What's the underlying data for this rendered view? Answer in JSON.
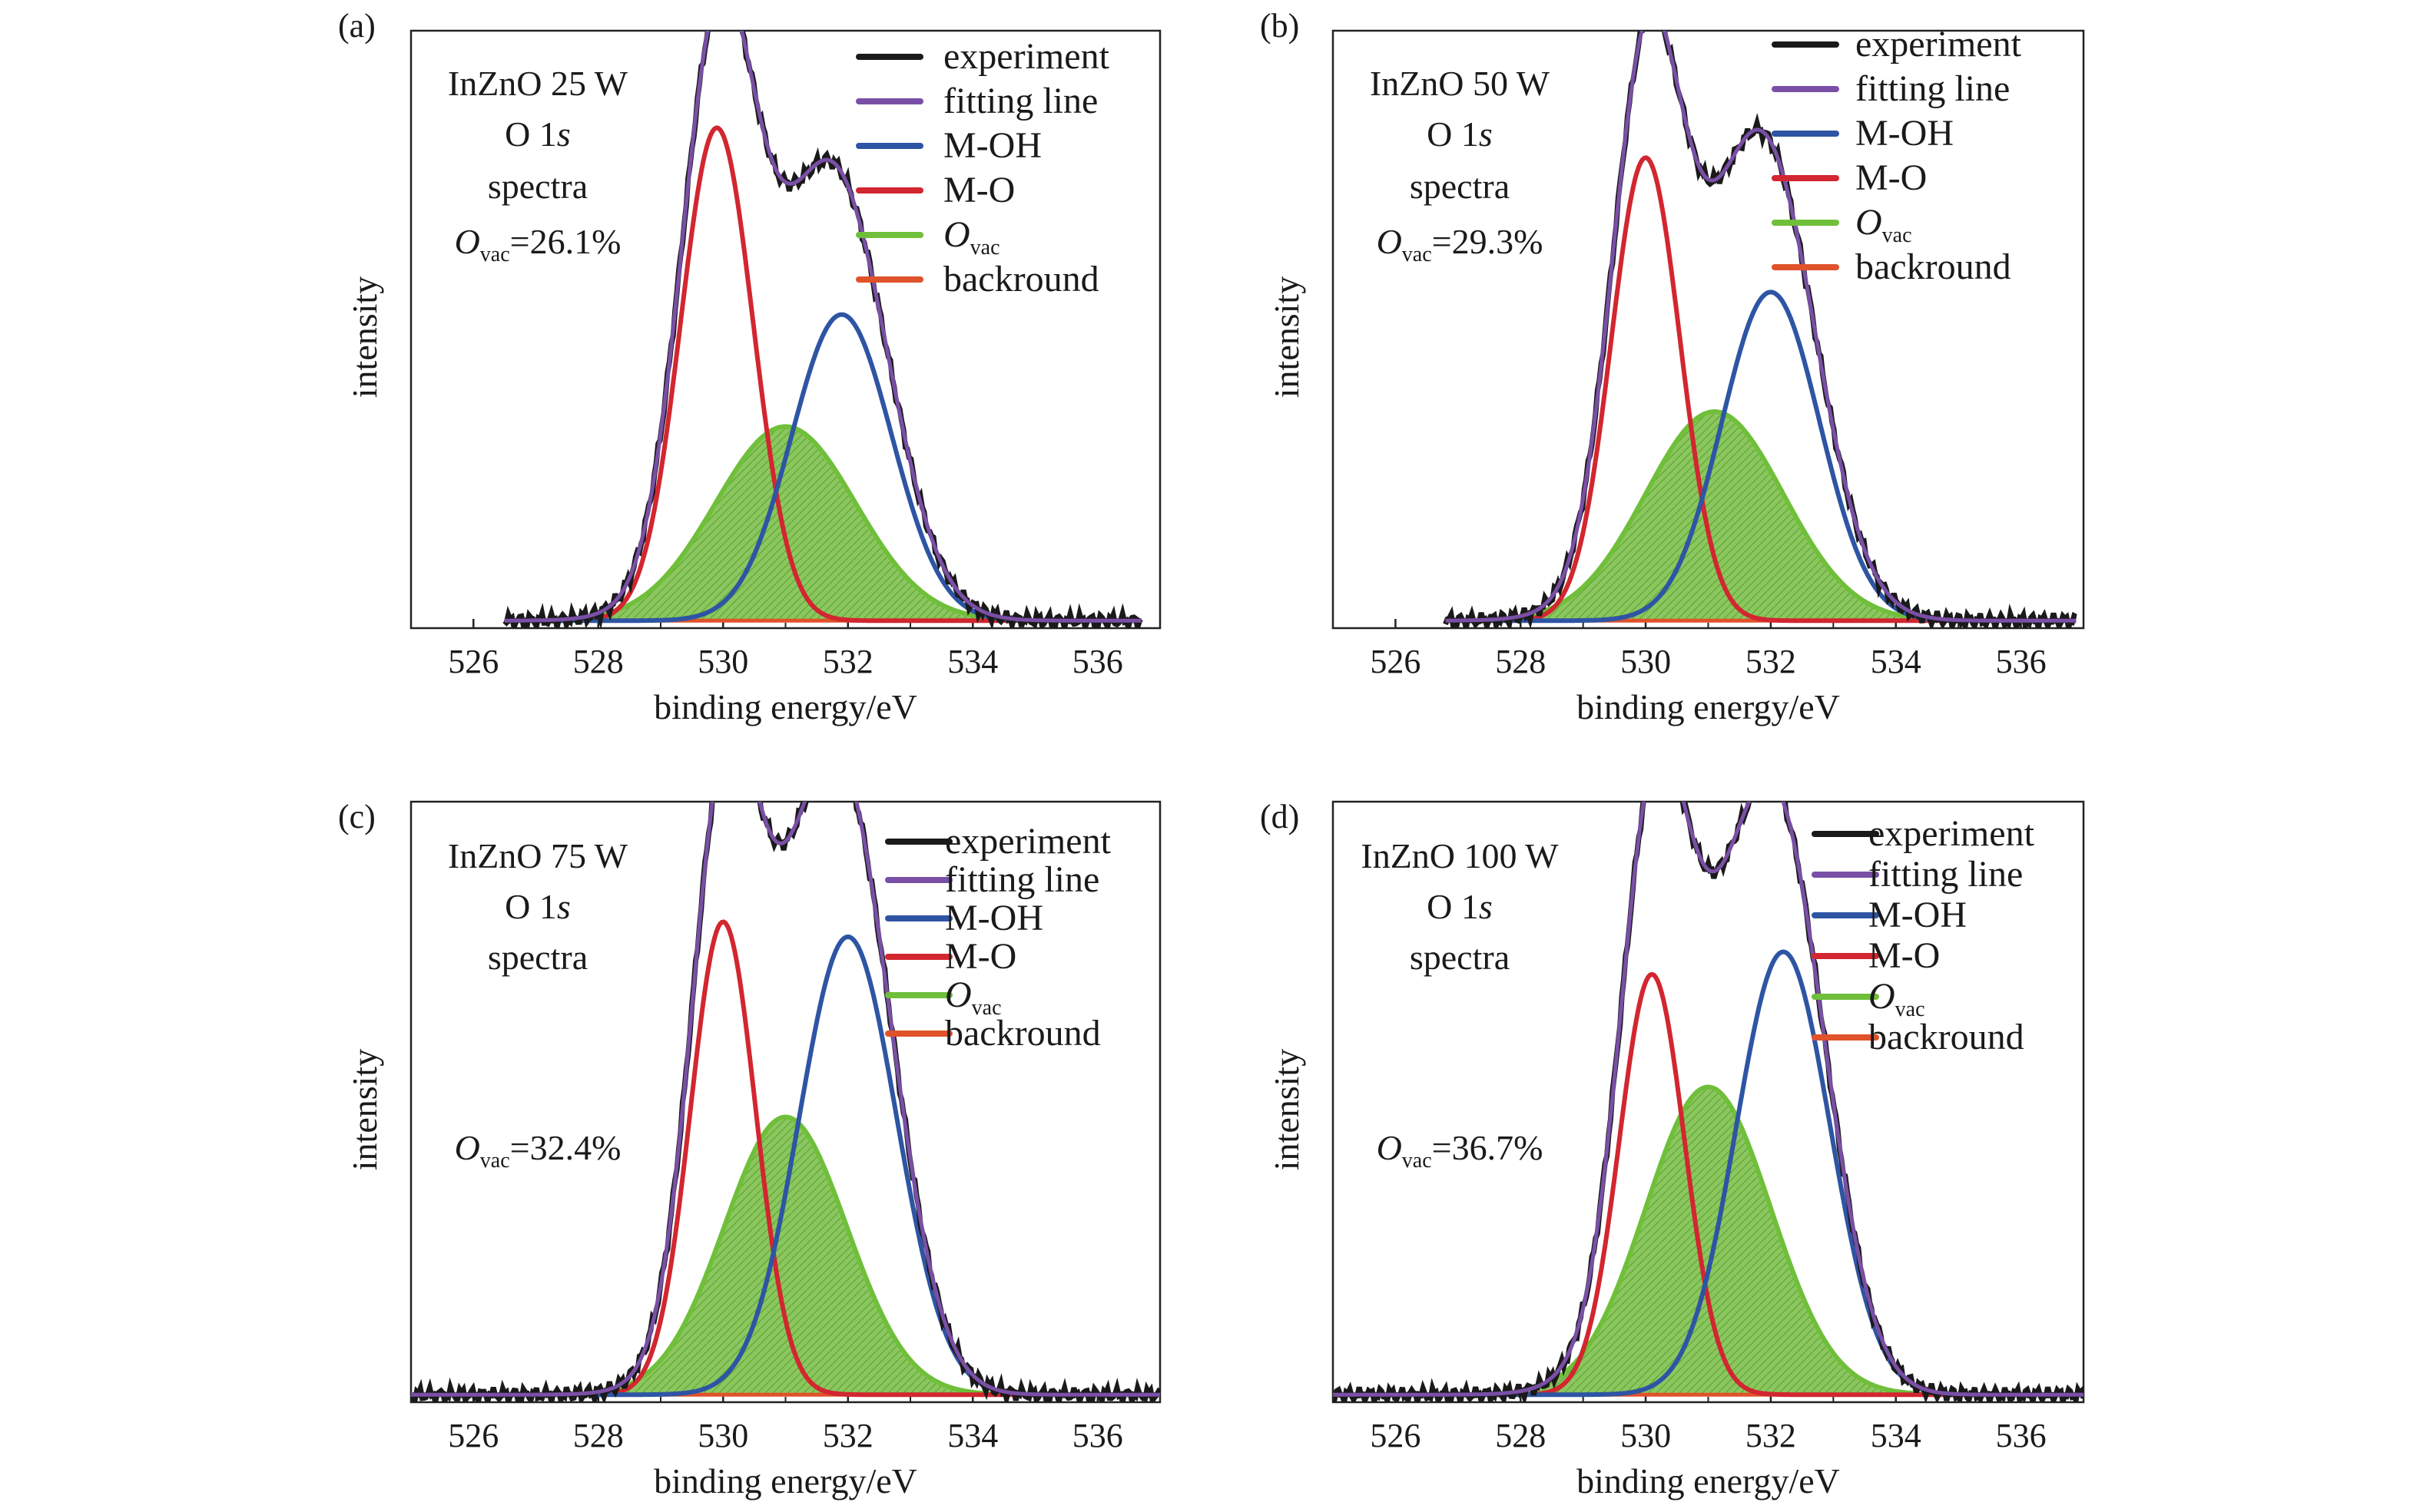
{
  "legend_labels": {
    "experiment": "experiment",
    "fitting": "fitting line",
    "moh": "M-OH",
    "mo": "M-O",
    "ovac_main": "O",
    "ovac_sub": "vac",
    "background": "backround"
  },
  "colors": {
    "experiment": "#1a1a1a",
    "fitting": "#7a4fa6",
    "moh": "#2e55a4",
    "mo": "#d22630",
    "ovac": "#6fbf3a",
    "ovac_fill": "#8cc660",
    "background": "#e0522a"
  },
  "chart_data": [
    {
      "type": "line",
      "panel_label": "(a)",
      "annotation": {
        "line1": "InZnO 25 W",
        "line2_main": "O 1",
        "line2_italic": "s",
        "line3": "spectra",
        "ovac_main": "O",
        "ovac_sub": "vac",
        "ovac_value": "=26.1%"
      },
      "xlabel": "binding energy/eV",
      "ylabel": "intensity",
      "xticks": [
        "526",
        "528",
        "530",
        "532",
        "534",
        "536"
      ],
      "xlim": [
        525,
        537
      ],
      "x_start": 526.5,
      "x_end": 536.7,
      "peaks": {
        "mo": {
          "center": 529.9,
          "height": 0.66,
          "sigma": 0.58
        },
        "moh": {
          "center": 531.9,
          "height": 0.41,
          "sigma": 0.8
        },
        "ovac": {
          "center": 531.0,
          "height": 0.26,
          "sigma": 1.12
        }
      },
      "baseline": 0.01
    },
    {
      "type": "line",
      "panel_label": "(b)",
      "annotation": {
        "line1": "InZnO 50 W",
        "line2_main": "O 1",
        "line2_italic": "s",
        "line3": "spectra",
        "ovac_main": "O",
        "ovac_sub": "vac",
        "ovac_value": "=29.3%"
      },
      "xlabel": "binding energy/eV",
      "ylabel": "intensity",
      "xticks": [
        "526",
        "528",
        "530",
        "532",
        "534",
        "536"
      ],
      "xlim": [
        525,
        537
      ],
      "x_start": 526.8,
      "x_end": 536.9,
      "peaks": {
        "mo": {
          "center": 530.0,
          "height": 0.62,
          "sigma": 0.55
        },
        "moh": {
          "center": 532.0,
          "height": 0.44,
          "sigma": 0.78
        },
        "ovac": {
          "center": 531.1,
          "height": 0.28,
          "sigma": 1.1
        }
      },
      "baseline": 0.01
    },
    {
      "type": "line",
      "panel_label": "(c)",
      "annotation": {
        "line1": "InZnO 75 W",
        "line2_main": "O 1",
        "line2_italic": "s",
        "line3": "spectra",
        "ovac_main": "O",
        "ovac_sub": "vac",
        "ovac_value": "=32.4%"
      },
      "xlabel": "binding energy/eV",
      "ylabel": "intensity",
      "xticks": [
        "526",
        "528",
        "530",
        "532",
        "534",
        "536"
      ],
      "xlim": [
        525,
        537
      ],
      "x_start": 525.0,
      "x_end": 537.0,
      "peaks": {
        "mo": {
          "center": 530.0,
          "height": 0.63,
          "sigma": 0.52
        },
        "moh": {
          "center": 532.0,
          "height": 0.61,
          "sigma": 0.78
        },
        "ovac": {
          "center": 531.0,
          "height": 0.37,
          "sigma": 0.98
        }
      },
      "baseline": 0.01
    },
    {
      "type": "line",
      "panel_label": "(d)",
      "annotation": {
        "line1": "InZnO 100 W",
        "line2_main": "O 1",
        "line2_italic": "s",
        "line3": "spectra",
        "ovac_main": "O",
        "ovac_sub": "vac",
        "ovac_value": "=36.7%"
      },
      "xlabel": "binding energy/eV",
      "ylabel": "intensity",
      "xticks": [
        "526",
        "528",
        "530",
        "532",
        "534",
        "536"
      ],
      "xlim": [
        525,
        537
      ],
      "x_start": 525.0,
      "x_end": 537.0,
      "peaks": {
        "mo": {
          "center": 530.1,
          "height": 0.56,
          "sigma": 0.52
        },
        "moh": {
          "center": 532.2,
          "height": 0.59,
          "sigma": 0.75
        },
        "ovac": {
          "center": 531.0,
          "height": 0.41,
          "sigma": 1.0
        }
      },
      "baseline": 0.01
    }
  ]
}
